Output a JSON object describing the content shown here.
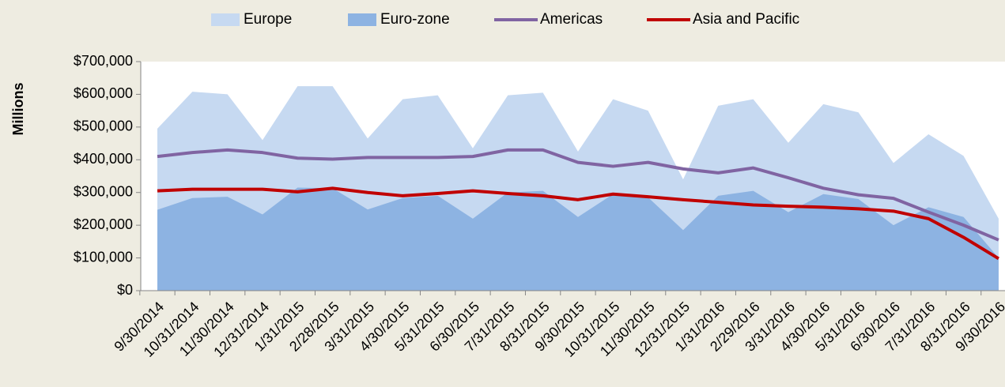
{
  "chart_data": {
    "type": "line",
    "y_label": "Millions",
    "categories": [
      "9/30/2014",
      "10/31/2014",
      "11/30/2014",
      "12/31/2014",
      "1/31/2015",
      "2/28/2015",
      "3/31/2015",
      "4/30/2015",
      "5/31/2015",
      "6/30/2015",
      "7/31/2015",
      "8/31/2015",
      "9/30/2015",
      "10/31/2015",
      "11/30/2015",
      "12/31/2015",
      "1/31/2016",
      "2/29/2016",
      "3/31/2016",
      "4/30/2016",
      "5/31/2016",
      "6/30/2016",
      "7/31/2016",
      "8/31/2016",
      "9/30/2016"
    ],
    "series": [
      {
        "name": "Europe",
        "type": "area",
        "color": "#c6d9f1",
        "values": [
          495000,
          608000,
          600000,
          460000,
          625000,
          625000,
          465000,
          585000,
          597000,
          435000,
          597000,
          605000,
          425000,
          585000,
          550000,
          340000,
          565000,
          585000,
          452000,
          570000,
          545000,
          390000,
          478000,
          412000,
          220000
        ]
      },
      {
        "name": "Euro-zone",
        "type": "area",
        "color": "#8db3e2",
        "values": [
          247000,
          283000,
          287000,
          233000,
          315000,
          313000,
          248000,
          283000,
          290000,
          220000,
          300000,
          305000,
          225000,
          295000,
          285000,
          185000,
          290000,
          305000,
          240000,
          295000,
          280000,
          200000,
          255000,
          225000,
          100000
        ]
      },
      {
        "name": "Americas",
        "type": "line",
        "color": "#8064a2",
        "values": [
          410000,
          422000,
          430000,
          422000,
          405000,
          402000,
          407000,
          407000,
          407000,
          410000,
          430000,
          430000,
          392000,
          380000,
          392000,
          372000,
          360000,
          375000,
          345000,
          313000,
          293000,
          282000,
          240000,
          200000,
          155000
        ]
      },
      {
        "name": "Asia and Pacific",
        "type": "line",
        "color": "#c00000",
        "values": [
          305000,
          310000,
          310000,
          310000,
          302000,
          313000,
          300000,
          290000,
          297000,
          305000,
          297000,
          290000,
          278000,
          295000,
          287000,
          278000,
          270000,
          262000,
          258000,
          255000,
          250000,
          243000,
          220000,
          163000,
          98000
        ]
      }
    ],
    "ylim": [
      0,
      700000
    ],
    "yticks": [
      {
        "value": 0,
        "label": "$0"
      },
      {
        "value": 100000,
        "label": "$100,000"
      },
      {
        "value": 200000,
        "label": "$200,000"
      },
      {
        "value": 300000,
        "label": "$300,000"
      },
      {
        "value": 400000,
        "label": "$400,000"
      },
      {
        "value": 500000,
        "label": "$500,000"
      },
      {
        "value": 600000,
        "label": "$600,000"
      },
      {
        "value": 700000,
        "label": "$700,000"
      }
    ],
    "legend": "top"
  }
}
